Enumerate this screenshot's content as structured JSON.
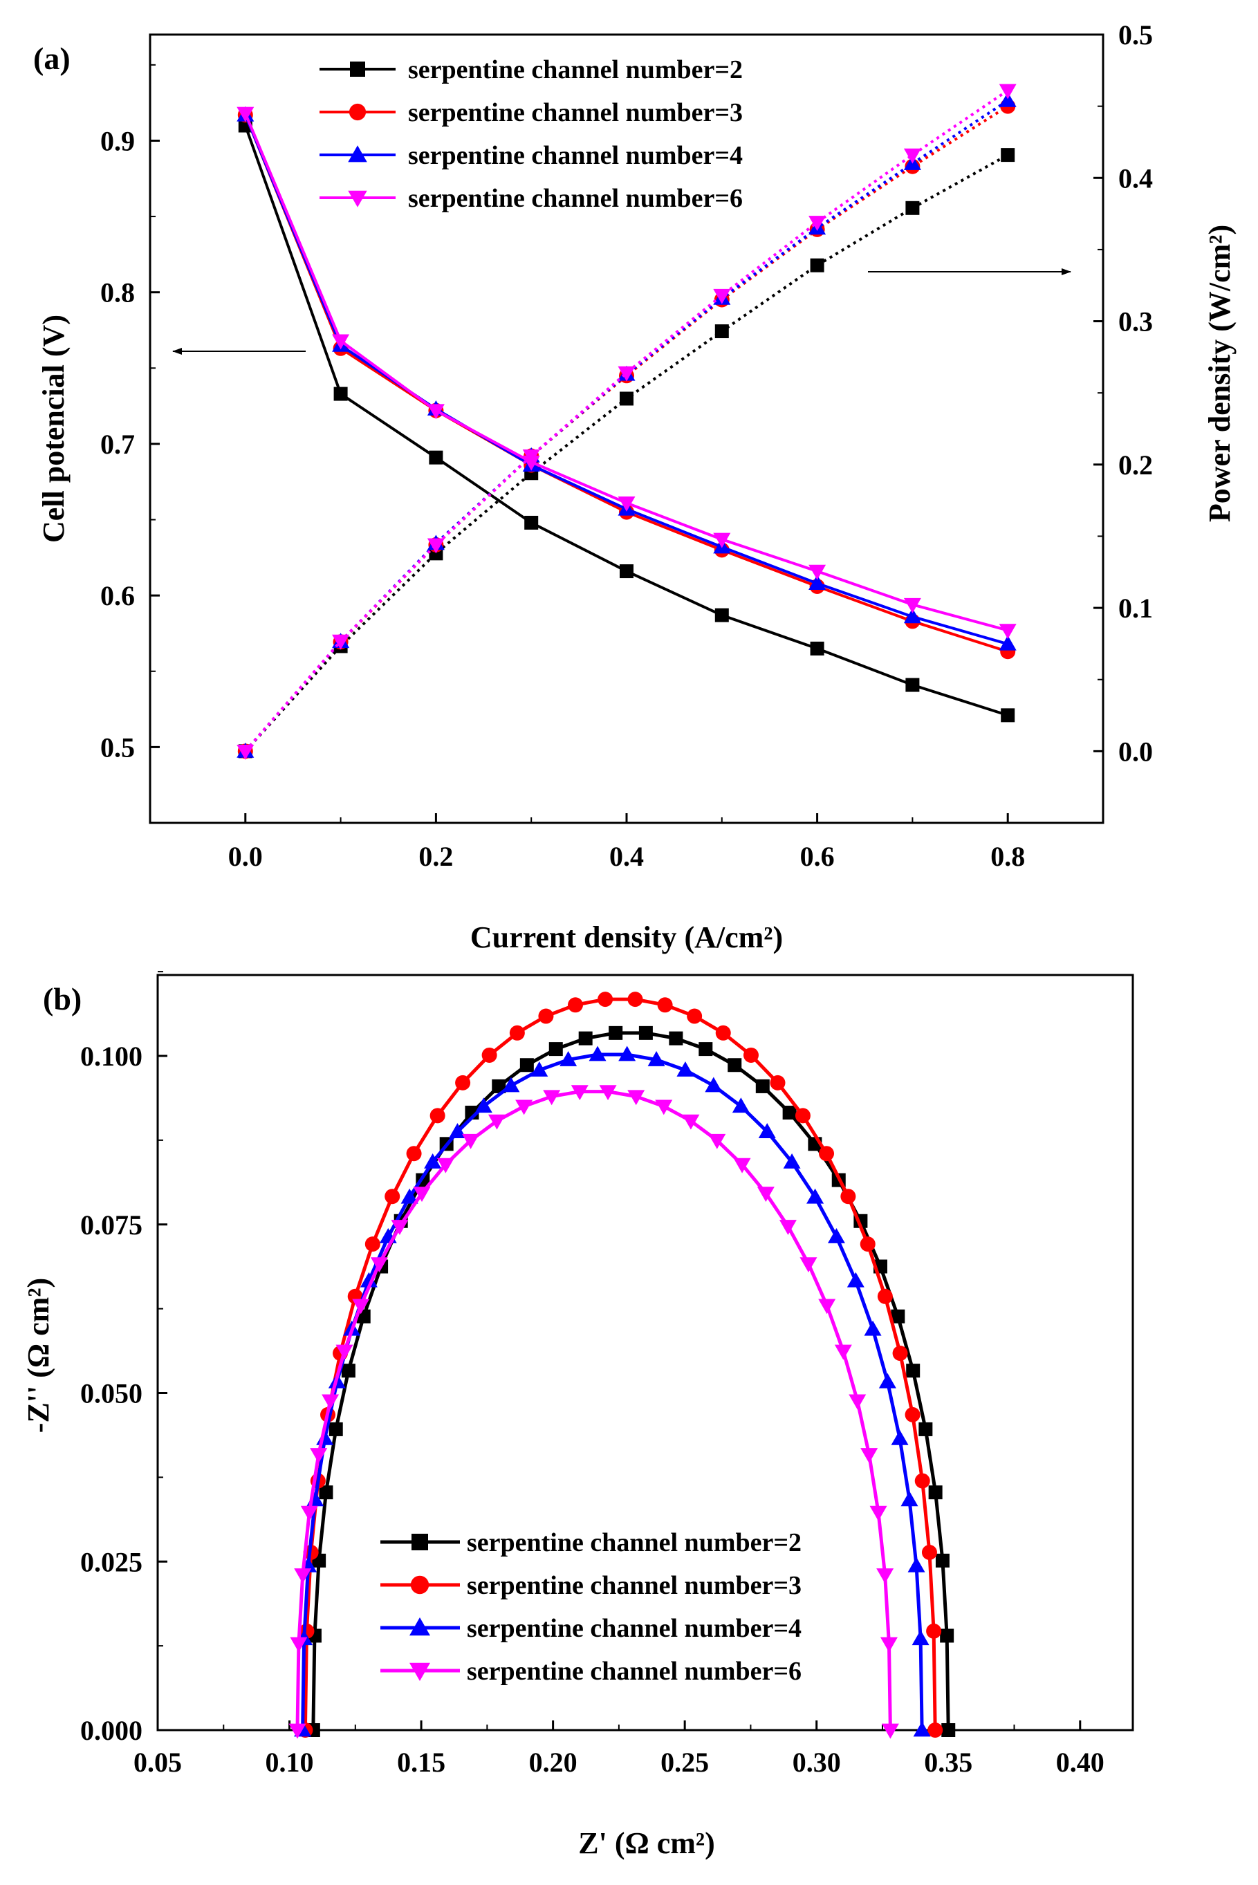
{
  "colors": {
    "s2": "#000000",
    "s3": "#ff0000",
    "s4": "#0000ff",
    "s6": "#ff00ff"
  },
  "chart_data": [
    {
      "id": "a",
      "panel_label": "(a)",
      "type": "line",
      "xlabel": "Current density (A/cm²)",
      "ylabel": "Cell potencial (V)",
      "y2label": "Power density (W/cm²)",
      "xlim": [
        -0.1,
        0.9
      ],
      "ylim": [
        0.45,
        0.97
      ],
      "y2lim": [
        -0.05,
        0.5
      ],
      "xticks": [
        "0.0",
        "0.2",
        "0.4",
        "0.6",
        "0.8"
      ],
      "yticks": [
        "0.5",
        "0.6",
        "0.7",
        "0.8",
        "0.9"
      ],
      "y2ticks": [
        "0.0",
        "0.1",
        "0.2",
        "0.3",
        "0.4",
        "0.5"
      ],
      "legend_position": "top-left",
      "annotations": [
        "arrow pointing left to the cell potential axis",
        "arrow pointing right to the power density axis"
      ],
      "x": [
        0,
        0.1,
        0.2,
        0.3,
        0.4,
        0.5,
        0.6,
        0.7,
        0.8
      ],
      "series": [
        {
          "name": "serpentine channel number=2",
          "color_key": "s2",
          "marker": "square",
          "potential": [
            0.91,
            0.733,
            0.691,
            0.648,
            0.616,
            0.587,
            0.565,
            0.541,
            0.521
          ],
          "power": [
            0.0,
            0.0733,
            0.138,
            0.194,
            0.246,
            0.293,
            0.339,
            0.379,
            0.416
          ]
        },
        {
          "name": "serpentine channel number=3",
          "color_key": "s3",
          "marker": "circle",
          "potential": [
            0.917,
            0.763,
            0.722,
            0.686,
            0.655,
            0.63,
            0.606,
            0.583,
            0.563
          ],
          "power": [
            0.0,
            0.0763,
            0.144,
            0.206,
            0.262,
            0.315,
            0.364,
            0.408,
            0.45
          ]
        },
        {
          "name": "serpentine channel number=4",
          "color_key": "s4",
          "marker": "triangle-up",
          "potential": [
            0.917,
            0.765,
            0.723,
            0.686,
            0.657,
            0.632,
            0.608,
            0.586,
            0.568
          ],
          "power": [
            0.0,
            0.0765,
            0.145,
            0.206,
            0.263,
            0.316,
            0.365,
            0.41,
            0.454
          ]
        },
        {
          "name": "serpentine channel number=6",
          "color_key": "s6",
          "marker": "triangle-down",
          "potential": [
            0.918,
            0.768,
            0.722,
            0.688,
            0.661,
            0.637,
            0.616,
            0.594,
            0.577
          ],
          "power": [
            0.0,
            0.0768,
            0.144,
            0.206,
            0.264,
            0.318,
            0.369,
            0.416,
            0.461
          ]
        }
      ]
    },
    {
      "id": "b",
      "panel_label": "(b)",
      "type": "scatter",
      "xlabel": "Z' (Ω cm²)",
      "ylabel": "-Z'' (Ω cm²)",
      "xlim": [
        0.05,
        0.42
      ],
      "ylim": [
        0,
        0.112
      ],
      "xticks": [
        "0.05",
        "0.10",
        "0.15",
        "0.20",
        "0.25",
        "0.30",
        "0.35",
        "0.40"
      ],
      "yticks": [
        "0.000",
        "0.025",
        "0.050",
        "0.075",
        "0.100"
      ],
      "legend_position": "bottom-center",
      "series": [
        {
          "name": "serpentine channel number=2",
          "color_key": "s2",
          "marker": "square",
          "r_left": 0.109,
          "r_right": 0.35,
          "peak_z_re": 0.24,
          "peak_z_im": 0.1035
        },
        {
          "name": "serpentine channel number=3",
          "color_key": "s3",
          "marker": "circle",
          "r_left": 0.106,
          "r_right": 0.345,
          "peak_z_re": 0.235,
          "peak_z_im": 0.1085
        },
        {
          "name": "serpentine channel number=4",
          "color_key": "s4",
          "marker": "triangle-up",
          "r_left": 0.105,
          "r_right": 0.34,
          "peak_z_re": 0.24,
          "peak_z_im": 0.1003
        },
        {
          "name": "serpentine channel number=6",
          "color_key": "s6",
          "marker": "triangle-down",
          "r_left": 0.103,
          "r_right": 0.328,
          "peak_z_re": 0.232,
          "peak_z_im": 0.0948
        }
      ]
    }
  ]
}
